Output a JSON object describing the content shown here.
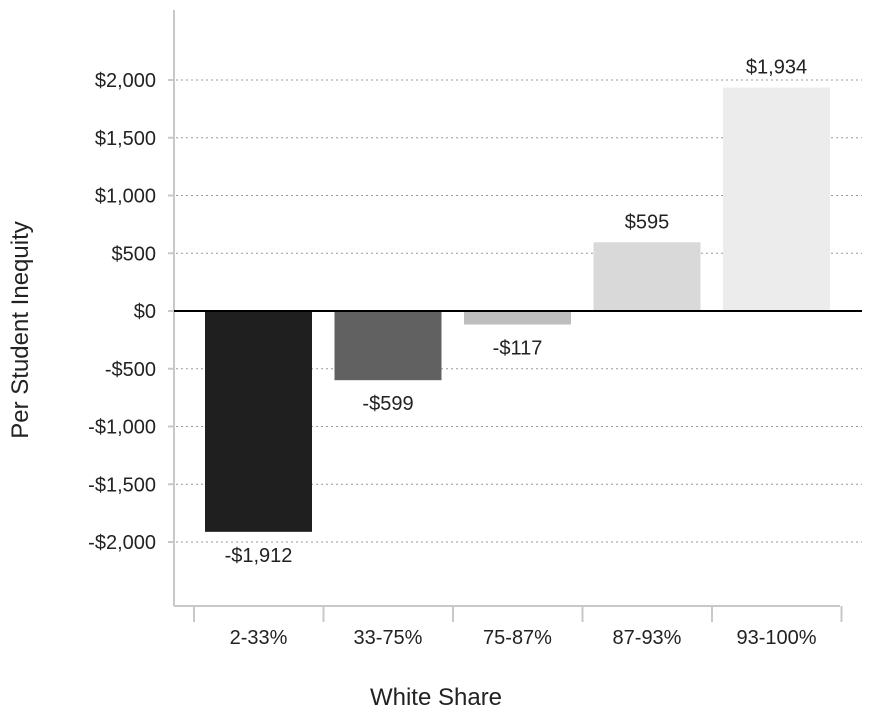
{
  "chart_data": {
    "type": "bar",
    "title": "",
    "xlabel": "White Share",
    "ylabel": "Per Student Inequity",
    "categories": [
      "2-33%",
      "33-75%",
      "75-87%",
      "87-93%",
      "93-100%"
    ],
    "values": [
      -1912,
      -599,
      -117,
      595,
      1934
    ],
    "data_labels": [
      "-$1,912",
      "-$599",
      "-$117",
      "$595",
      "$1,934"
    ],
    "bar_colors": [
      "#1f1f1f",
      "#616161",
      "#bdbdbd",
      "#d9d9d9",
      "#ececec"
    ],
    "ylim": [
      -2500,
      2500
    ],
    "yticks": [
      2000,
      1500,
      1000,
      500,
      0,
      -500,
      -1000,
      -1500,
      -2000
    ],
    "ytick_labels": [
      "$2,000",
      "$1,500",
      "$1,000",
      "$500",
      "$0",
      "-$500",
      "-$1,000",
      "-$1,500",
      "-$2,000"
    ],
    "grid": true,
    "legend": "none"
  }
}
